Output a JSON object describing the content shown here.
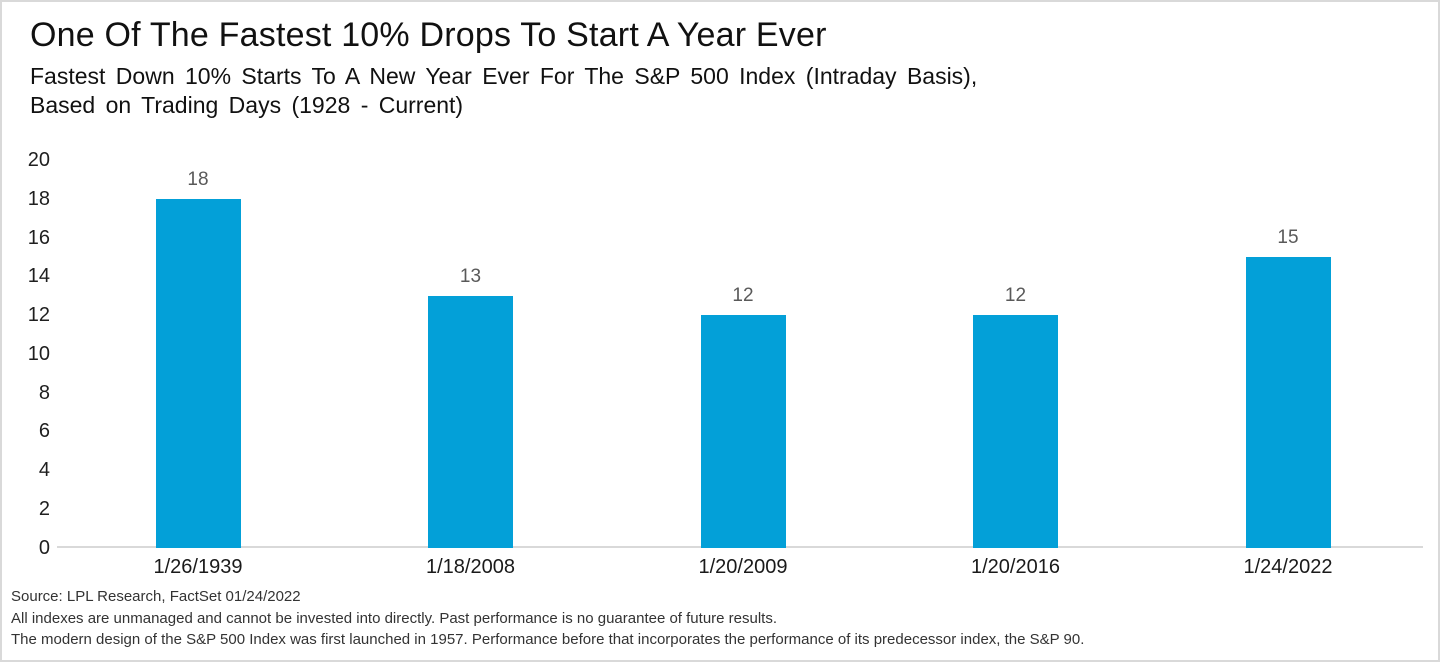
{
  "header": {
    "title": "One Of The Fastest 10% Drops To Start A Year Ever",
    "subtitle_line1": "Fastest Down 10% Starts To A New Year Ever For The S&P 500 Index (Intraday Basis),",
    "subtitle_line2": "Based on Trading Days (1928 - Current)"
  },
  "chart_data": {
    "type": "bar",
    "title": "One Of The Fastest 10% Drops To Start A Year Ever",
    "subtitle": "Fastest Down 10% Starts To A New Year Ever For The S&P 500 Index (Intraday Basis), Based on Trading Days (1928 - Current)",
    "categories": [
      "1/26/1939",
      "1/18/2008",
      "1/20/2009",
      "1/20/2016",
      "1/24/2022"
    ],
    "values": [
      18,
      13,
      12,
      12,
      15
    ],
    "xlabel": "",
    "ylabel": "",
    "ylim": [
      0,
      20
    ],
    "ytick_step": 2,
    "grid": false,
    "legend_position": "none",
    "data_labels": true
  },
  "colors": {
    "bar": "#03A0D8",
    "axis_line": "#D9D9D9",
    "tick_label": "#1F1F1F",
    "value_label": "#595959",
    "title_text": "#111111",
    "footer_text": "#333333",
    "frame_border": "#D9D9D9",
    "background": "#FFFFFF"
  },
  "footer": {
    "lines": [
      "Source: LPL Research, FactSet 01/24/2022",
      "All indexes are unmanaged and cannot be invested into directly. Past performance is no guarantee of future results.",
      "The modern design of the S&P 500 Index was first launched in 1957. Performance before that incorporates the performance of its predecessor index, the S&P 90."
    ]
  }
}
